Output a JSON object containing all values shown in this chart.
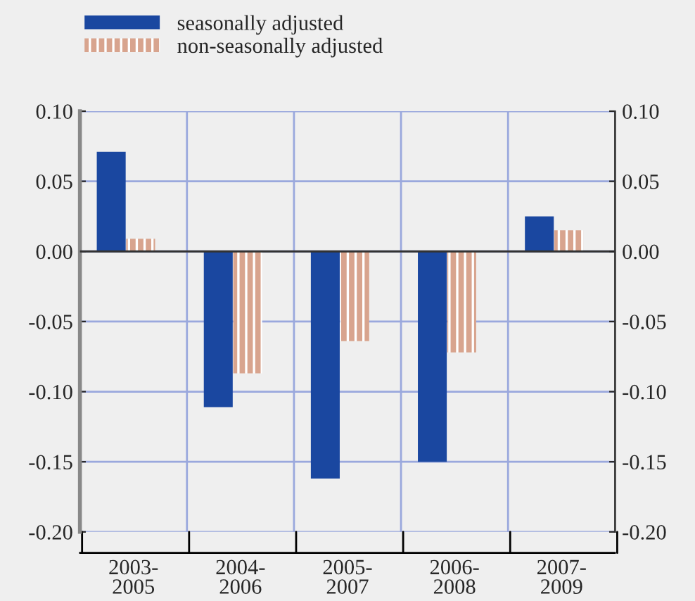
{
  "chart_data": {
    "type": "bar",
    "categories": [
      "2003-\n2005",
      "2004-\n2006",
      "2005-\n2007",
      "2006-\n2008",
      "2007-\n2009"
    ],
    "series": [
      {
        "name": "seasonally adjusted",
        "color": "#1a47a0",
        "values": [
          0.071,
          -0.111,
          -0.162,
          -0.15,
          0.025
        ]
      },
      {
        "name": "non-seasonally adjusted",
        "color": "#d8a48e",
        "values": [
          0.009,
          -0.087,
          -0.064,
          -0.072,
          0.015
        ]
      }
    ],
    "ylim": [
      -0.2,
      0.1
    ],
    "yticks": [
      {
        "value": -0.2,
        "label": "-0.20"
      },
      {
        "value": -0.15,
        "label": "-0.15"
      },
      {
        "value": -0.1,
        "label": "-0.10"
      },
      {
        "value": -0.05,
        "label": "-0.05"
      },
      {
        "value": 0,
        "label": "0.00"
      },
      {
        "value": 0.05,
        "label": "0.05"
      },
      {
        "value": 0.1,
        "label": "0.10"
      }
    ],
    "y2lim": [
      -0.2,
      0.1
    ],
    "y2ticks": [
      {
        "value": -0.2,
        "label": "-0.20"
      },
      {
        "value": -0.15,
        "label": "-0.15"
      },
      {
        "value": -0.1,
        "label": "-0.10"
      },
      {
        "value": -0.05,
        "label": "-0.05"
      },
      {
        "value": 0,
        "label": "0.00"
      },
      {
        "value": 0.05,
        "label": "0.05"
      },
      {
        "value": 0.1,
        "label": "0.10"
      }
    ],
    "grid": true,
    "legend": "top left"
  }
}
